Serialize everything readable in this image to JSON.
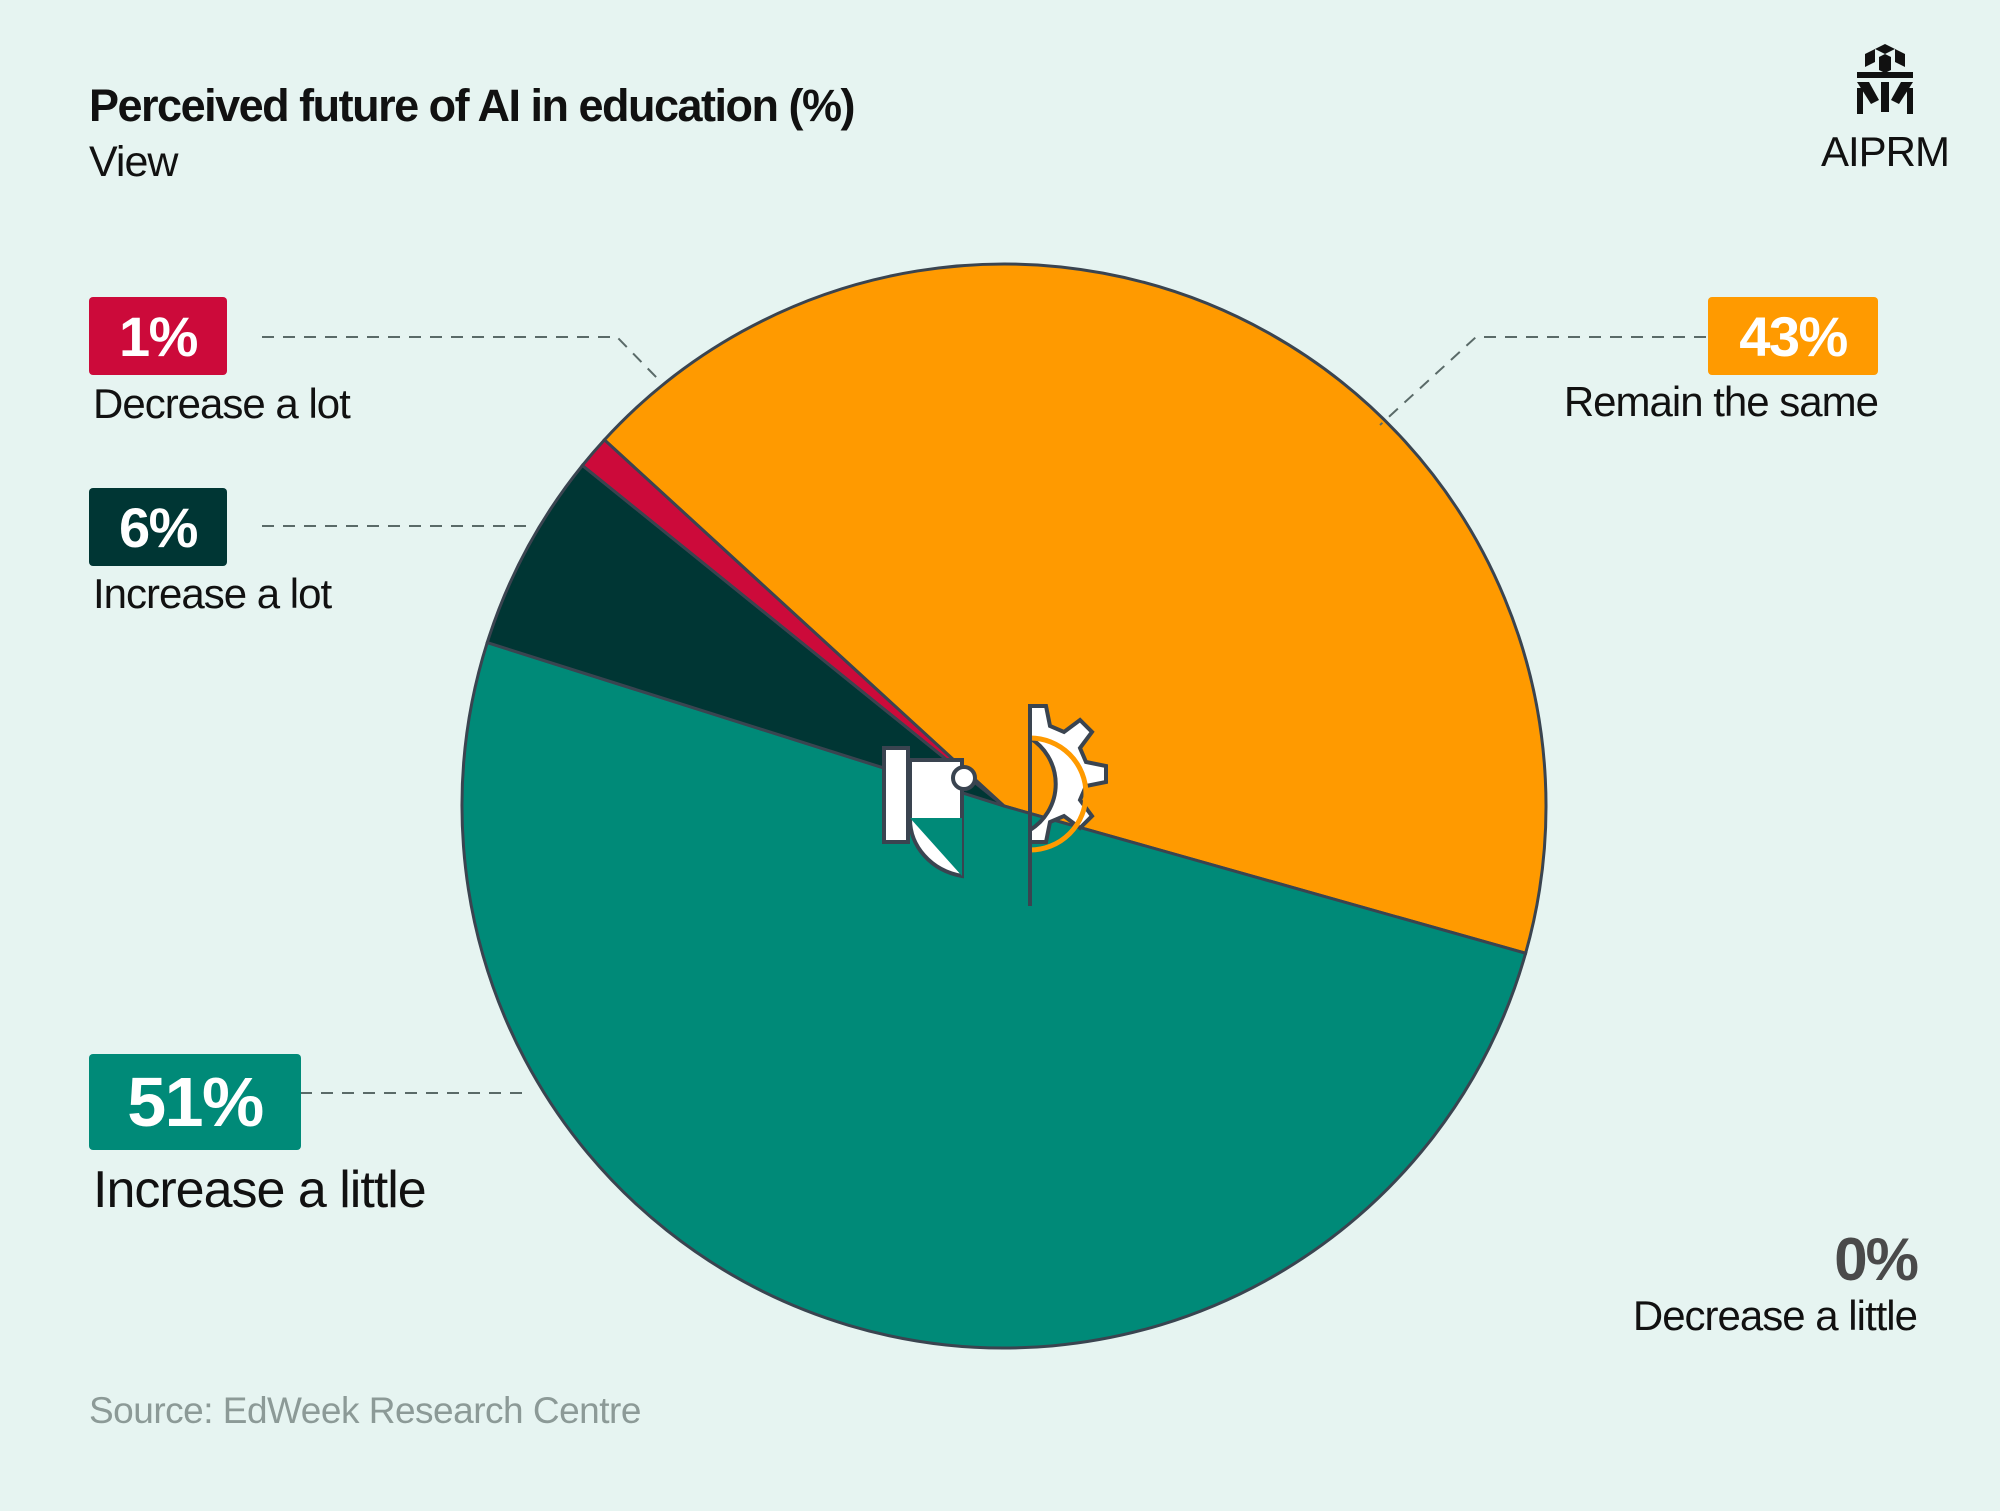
{
  "header": {
    "title": "Perceived future of AI in education (%)",
    "subtitle": "View"
  },
  "brand": {
    "name": "AIPRM"
  },
  "source": "Source: EdWeek Research Centre",
  "colors": {
    "background": "#e6f4f1",
    "remain_the_same": "#ff9a00",
    "increase_a_little": "#008a78",
    "increase_a_lot": "#003634",
    "decrease_a_lot": "#cc0a3a",
    "decrease_a_little": "#4a4a4a",
    "outline": "#3a4450"
  },
  "center_icon": "robot-teacher-icon",
  "chart_data": {
    "type": "pie",
    "title": "Perceived future of AI in education (%)",
    "subtitle": "View",
    "unit": "%",
    "slices": [
      {
        "label": "Remain the same",
        "value": 43,
        "value_label": "43%",
        "color": "#ff9a00"
      },
      {
        "label": "Increase a little",
        "value": 51,
        "value_label": "51%",
        "color": "#008a78"
      },
      {
        "label": "Increase a lot",
        "value": 6,
        "value_label": "6%",
        "color": "#003634"
      },
      {
        "label": "Decrease a lot",
        "value": 1,
        "value_label": "1%",
        "color": "#cc0a3a"
      },
      {
        "label": "Decrease a little",
        "value": 0,
        "value_label": "0%",
        "color": "#4a4a4a"
      }
    ],
    "source": "Source: EdWeek Research Centre"
  }
}
